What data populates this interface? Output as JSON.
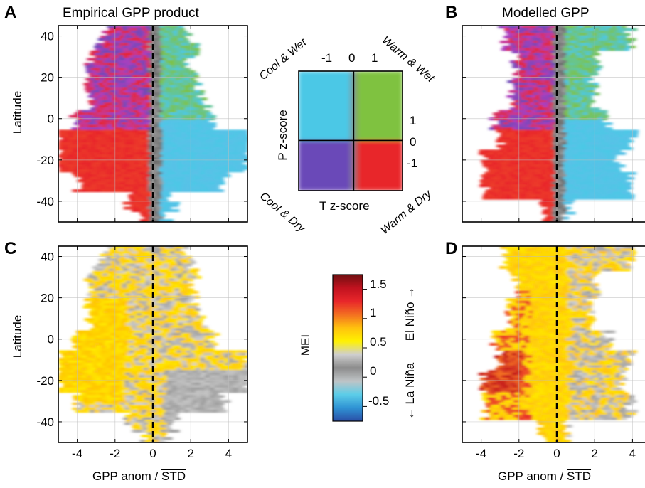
{
  "panels": [
    {
      "letter": "A",
      "title": "Empirical GPP product",
      "colormap": "climate",
      "shape": "empirical"
    },
    {
      "letter": "B",
      "title": "Modelled GPP",
      "colormap": "climate",
      "shape": "modelled"
    },
    {
      "letter": "C",
      "title": "",
      "colormap": "mei",
      "shape": "empirical"
    },
    {
      "letter": "D",
      "title": "",
      "colormap": "mei",
      "shape": "modelled"
    }
  ],
  "axes": {
    "ylabel": "Latitude",
    "xlabel": "GPP anom / ",
    "xlabel_overline": "STD",
    "xticks": [
      -4,
      -2,
      0,
      2,
      4
    ],
    "yticks": [
      40,
      20,
      0,
      -20,
      -40
    ],
    "xlim": [
      -5,
      5
    ],
    "ylim": [
      -50,
      45
    ],
    "tick_labels_x": [
      "-4",
      "-2",
      "0",
      "2",
      "4"
    ],
    "tick_labels_y": [
      "40",
      "20",
      "0",
      "-20",
      "-40"
    ]
  },
  "climate_legend": {
    "corners": {
      "top_left": "Cool & Wet",
      "top_right": "Warm & Wet",
      "bottom_left": "Cool & Dry",
      "bottom_right": "Warm & Dry"
    },
    "x_ticks": [
      "-1",
      "0",
      "1"
    ],
    "y_ticks": [
      "1",
      "0",
      "-1"
    ],
    "x_label": "T z-score",
    "y_label": "P z-score",
    "colors": {
      "cool_wet": "#4cc8e6",
      "warm_wet": "#7fc241",
      "cool_dry": "#6b49b8",
      "warm_dry": "#e8262a"
    }
  },
  "mei_colorbar": {
    "label": "MEI",
    "ticks": [
      "1.5",
      "1",
      "0.5",
      "0",
      "-0.5"
    ],
    "range": [
      -0.75,
      1.75
    ],
    "side_label_top": "El Niño →",
    "side_label_bottom": "← La Niña",
    "stops": [
      "#2a4ea6",
      "#2f93d4",
      "#5ccde8",
      "#bfc4c6",
      "#8c8c8c",
      "#cfcfcf",
      "#fff200",
      "#ffc20e",
      "#f36f21",
      "#e8262a",
      "#c1121f",
      "#6e0f10"
    ]
  },
  "chart_data": [
    {
      "type": "heatmap",
      "title": "Empirical GPP product",
      "xlabel": "GPP anom / STD",
      "ylabel": "Latitude",
      "xlim": [
        -5,
        5
      ],
      "ylim": [
        -50,
        45
      ],
      "x": [
        -4,
        -2,
        0,
        2,
        4
      ],
      "y": [
        40,
        20,
        0,
        -20,
        -40
      ],
      "grid": true,
      "colored_by": "climate (T z-score, P z-score)",
      "dashed_line_x": 0
    },
    {
      "type": "heatmap",
      "title": "Modelled GPP",
      "xlabel": "GPP anom / STD",
      "ylabel": "",
      "xlim": [
        -5,
        5
      ],
      "ylim": [
        -50,
        45
      ],
      "x": [
        -4,
        -2,
        0,
        2,
        4
      ],
      "y": [
        40,
        20,
        0,
        -20,
        -40
      ],
      "grid": true,
      "colored_by": "climate (T z-score, P z-score)",
      "dashed_line_x": 0
    },
    {
      "type": "heatmap",
      "title": "",
      "xlabel": "GPP anom / STD",
      "ylabel": "Latitude",
      "xlim": [
        -5,
        5
      ],
      "ylim": [
        -50,
        45
      ],
      "x": [
        -4,
        -2,
        0,
        2,
        4
      ],
      "y": [
        40,
        20,
        0,
        -20,
        -40
      ],
      "grid": true,
      "colored_by": "MEI",
      "color_range": [
        -0.75,
        1.75
      ],
      "dashed_line_x": 0
    },
    {
      "type": "heatmap",
      "title": "",
      "xlabel": "GPP anom / STD",
      "ylabel": "",
      "xlim": [
        -5,
        5
      ],
      "ylim": [
        -50,
        45
      ],
      "x": [
        -4,
        -2,
        0,
        2,
        4
      ],
      "y": [
        40,
        20,
        0,
        -20,
        -40
      ],
      "grid": true,
      "colored_by": "MEI",
      "color_range": [
        -0.75,
        1.75
      ],
      "dashed_line_x": 0
    }
  ]
}
